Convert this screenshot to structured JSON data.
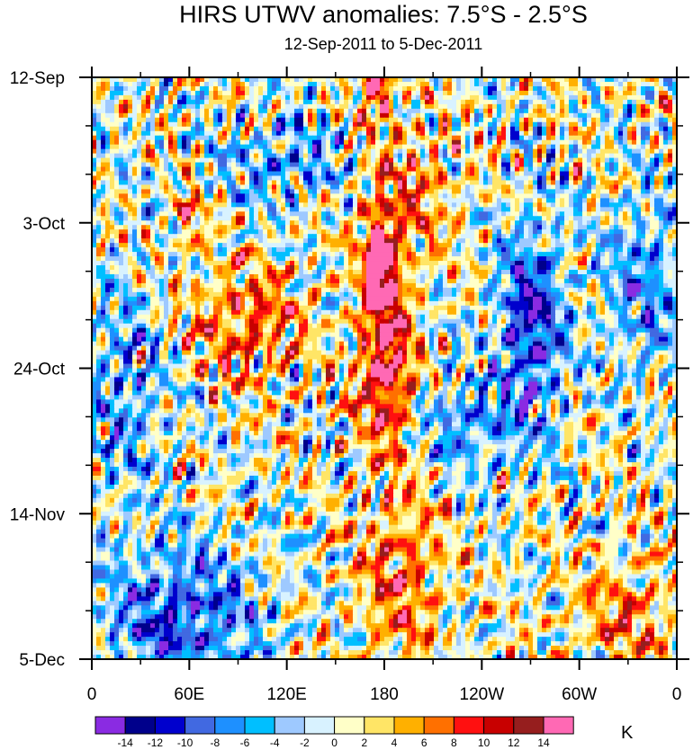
{
  "chart_data": {
    "type": "heatmap",
    "title": "HIRS UTWV anomalies: 7.5°S - 2.5°S",
    "subtitle": "12-Sep-2011 to 5-Dec-2011",
    "x_ticks": [
      {
        "label": "0",
        "lon": 0
      },
      {
        "label": "60E",
        "lon": 60
      },
      {
        "label": "120E",
        "lon": 120
      },
      {
        "label": "180",
        "lon": 180
      },
      {
        "label": "120W",
        "lon": 240
      },
      {
        "label": "60W",
        "lon": 300
      },
      {
        "label": "0",
        "lon": 360
      }
    ],
    "x_range": [
      0,
      360
    ],
    "y_ticks": [
      {
        "label": "12-Sep",
        "day": 0
      },
      {
        "label": "3-Oct",
        "day": 21
      },
      {
        "label": "24-Oct",
        "day": 42
      },
      {
        "label": "14-Nov",
        "day": 63
      },
      {
        "label": "5-Dec",
        "day": 84
      }
    ],
    "y_range": [
      0,
      84
    ],
    "colorbar": {
      "unit": "K",
      "levels": [
        -14,
        -12,
        -10,
        -8,
        -6,
        -4,
        -2,
        0,
        2,
        4,
        6,
        8,
        10,
        12,
        14
      ],
      "colors": [
        "#8a2be2",
        "#00008b",
        "#0000cd",
        "#4169e1",
        "#1e90ff",
        "#00bfff",
        "#9ec9ff",
        "#d8f2ff",
        "#ffffc8",
        "#ffe566",
        "#ffb000",
        "#ff7000",
        "#ff1010",
        "#c80000",
        "#961e1e",
        "#ff69b4"
      ]
    },
    "anomaly_features": [
      {
        "lon": 180,
        "day": 33,
        "value": 11,
        "width": 14,
        "height": 12,
        "desc": "strong positive band"
      },
      {
        "lon": 177,
        "day": 26,
        "value": 13,
        "width": 8,
        "height": 5
      },
      {
        "lon": 182,
        "day": 45,
        "value": 9,
        "width": 18,
        "height": 10
      },
      {
        "lon": 176,
        "day": 2,
        "value": 12,
        "width": 10,
        "height": 4
      },
      {
        "lon": 195,
        "day": 16,
        "value": 6,
        "width": 30,
        "height": 10
      },
      {
        "lon": 270,
        "day": 36,
        "value": -12,
        "width": 20,
        "height": 14,
        "desc": "strong negative center"
      },
      {
        "lon": 55,
        "day": 78,
        "value": -10,
        "width": 45,
        "height": 10
      },
      {
        "lon": 190,
        "day": 72,
        "value": 8,
        "width": 25,
        "height": 12
      },
      {
        "lon": 330,
        "day": 78,
        "value": 6,
        "width": 35,
        "height": 8
      },
      {
        "lon": 95,
        "day": 35,
        "value": 8,
        "width": 35,
        "height": 8
      },
      {
        "lon": 60,
        "day": 20,
        "value": 9,
        "width": 8,
        "height": 4
      },
      {
        "lon": 230,
        "day": 50,
        "value": -7,
        "width": 30,
        "height": 6
      },
      {
        "lon": 20,
        "day": 45,
        "value": -6,
        "width": 25,
        "height": 15
      },
      {
        "lon": 340,
        "day": 30,
        "value": -7,
        "width": 25,
        "height": 12
      },
      {
        "lon": 120,
        "day": 12,
        "value": -6,
        "width": 40,
        "height": 6
      }
    ]
  }
}
